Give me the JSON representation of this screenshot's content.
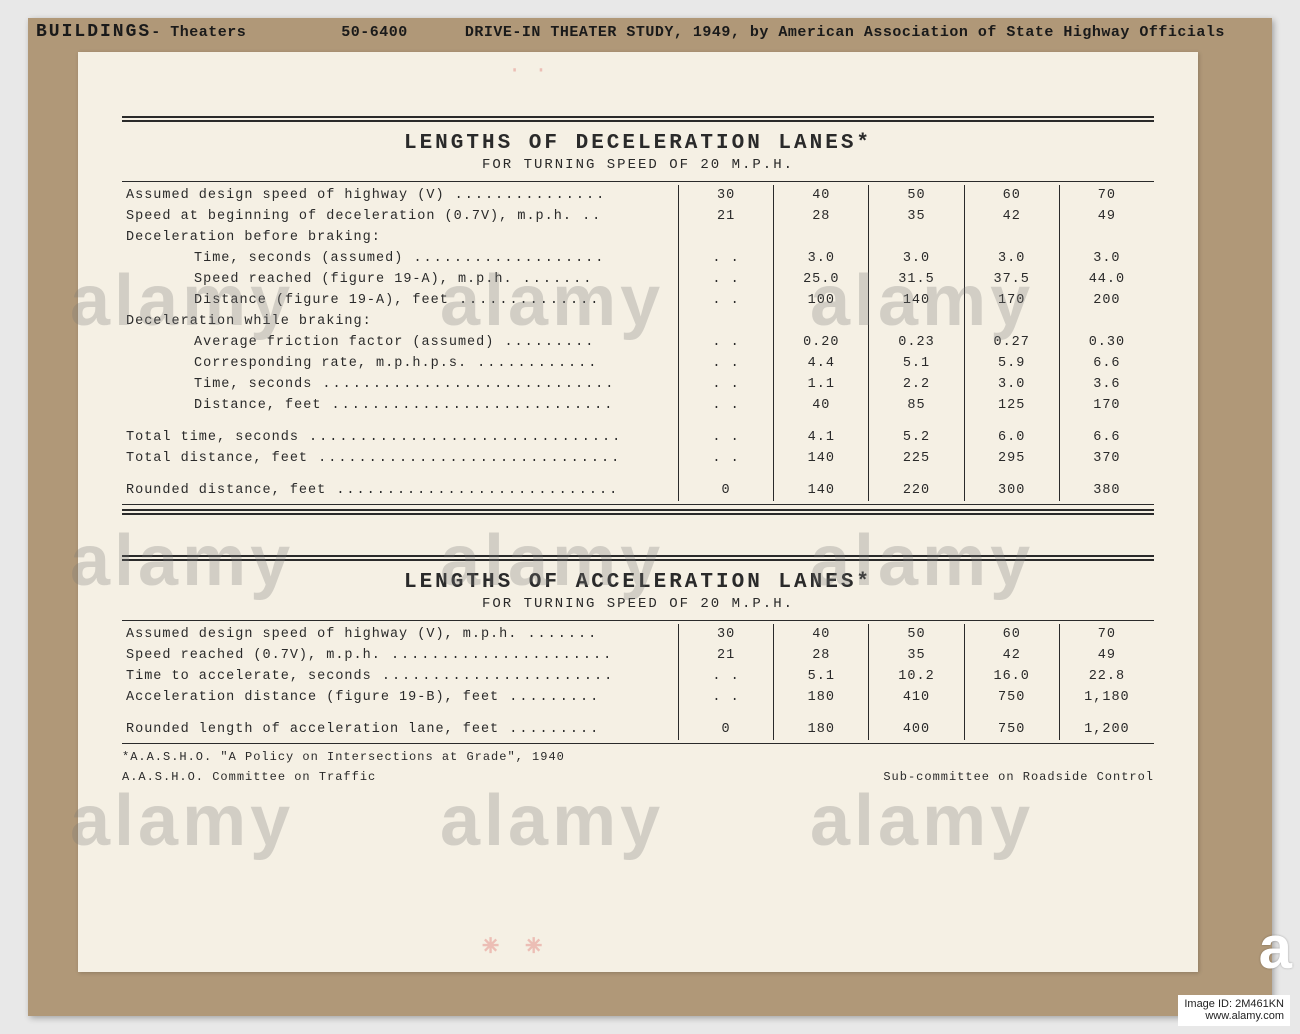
{
  "header": {
    "buildings": "BUILDINGS",
    "theaters": "Theaters",
    "code": "50-6400",
    "study": "DRIVE-IN THEATER STUDY, 1949, by American Association of State Highway Officials"
  },
  "colors": {
    "mat": "#b09878",
    "paper": "#f5f0e4",
    "ink": "#2a2a2a",
    "bg": "#e8e8e8"
  },
  "watermarks": {
    "alamy": "alamy",
    "logo": "a",
    "credit_line1": "Image ID: 2M461KN",
    "credit_line2": "www.alamy.com"
  },
  "table1": {
    "title": "LENGTHS OF DECELERATION LANES*",
    "subtitle": "FOR TURNING SPEED OF 20 M.P.H.",
    "col_vals": [
      "30",
      "40",
      "50",
      "60",
      "70"
    ],
    "rows": [
      {
        "label": "Assumed design speed of highway (V)",
        "indent": 0,
        "vals": [
          "30",
          "40",
          "50",
          "60",
          "70"
        ]
      },
      {
        "label": "Speed at beginning of deceleration (0.7V), m.p.h.",
        "indent": 0,
        "vals": [
          "21",
          "28",
          "35",
          "42",
          "49"
        ]
      },
      {
        "label": "Deceleration before braking:",
        "indent": 0,
        "vals": [
          "",
          "",
          "",
          "",
          ""
        ],
        "header": true
      },
      {
        "label": "Time, seconds (assumed)",
        "indent": 2,
        "vals": [
          ". .",
          "3.0",
          "3.0",
          "3.0",
          "3.0"
        ]
      },
      {
        "label": "Speed reached (figure 19-A), m.p.h.",
        "indent": 2,
        "vals": [
          ". .",
          "25.0",
          "31.5",
          "37.5",
          "44.0"
        ]
      },
      {
        "label": "Distance (figure 19-A), feet",
        "indent": 2,
        "vals": [
          ". .",
          "100",
          "140",
          "170",
          "200"
        ]
      },
      {
        "label": "Deceleration while braking:",
        "indent": 0,
        "vals": [
          "",
          "",
          "",
          "",
          ""
        ],
        "header": true
      },
      {
        "label": "Average friction factor (assumed)",
        "indent": 2,
        "vals": [
          ". .",
          "0.20",
          "0.23",
          "0.27",
          "0.30"
        ]
      },
      {
        "label": "Corresponding rate, m.p.h.p.s.",
        "indent": 2,
        "vals": [
          ". .",
          "4.4",
          "5.1",
          "5.9",
          "6.6"
        ]
      },
      {
        "label": "Time, seconds",
        "indent": 2,
        "vals": [
          ". .",
          "1.1",
          "2.2",
          "3.0",
          "3.6"
        ]
      },
      {
        "label": "Distance, feet",
        "indent": 2,
        "vals": [
          ". .",
          "40",
          "85",
          "125",
          "170"
        ]
      },
      {
        "label": "Total time, seconds",
        "indent": 0,
        "vals": [
          ". .",
          "4.1",
          "5.2",
          "6.0",
          "6.6"
        ],
        "gap": true
      },
      {
        "label": "Total distance, feet",
        "indent": 0,
        "vals": [
          ". .",
          "140",
          "225",
          "295",
          "370"
        ]
      },
      {
        "label": "Rounded distance, feet",
        "indent": 0,
        "vals": [
          "0",
          "140",
          "220",
          "300",
          "380"
        ],
        "gap": true
      }
    ]
  },
  "table2": {
    "title": "LENGTHS OF ACCELERATION LANES*",
    "subtitle": "FOR TURNING SPEED OF 20 M.P.H.",
    "rows": [
      {
        "label": "Assumed design speed of highway (V), m.p.h.",
        "indent": 0,
        "vals": [
          "30",
          "40",
          "50",
          "60",
          "70"
        ]
      },
      {
        "label": "Speed reached (0.7V), m.p.h.",
        "indent": 0,
        "vals": [
          "21",
          "28",
          "35",
          "42",
          "49"
        ]
      },
      {
        "label": "Time to accelerate, seconds",
        "indent": 0,
        "vals": [
          ". .",
          "5.1",
          "10.2",
          "16.0",
          "22.8"
        ]
      },
      {
        "label": "Acceleration distance (figure 19-B), feet",
        "indent": 0,
        "vals": [
          ". .",
          "180",
          "410",
          "750",
          "1,180"
        ]
      },
      {
        "label": "Rounded length of acceleration lane, feet",
        "indent": 0,
        "vals": [
          "0",
          "180",
          "400",
          "750",
          "1,200"
        ],
        "gap": true
      }
    ]
  },
  "footnotes": {
    "left1": "*A.A.S.H.O. \"A Policy on Intersections at Grade\", 1940",
    "left2": "A.A.S.H.O. Committee on Traffic",
    "right": "Sub-committee on Roadside Control"
  }
}
